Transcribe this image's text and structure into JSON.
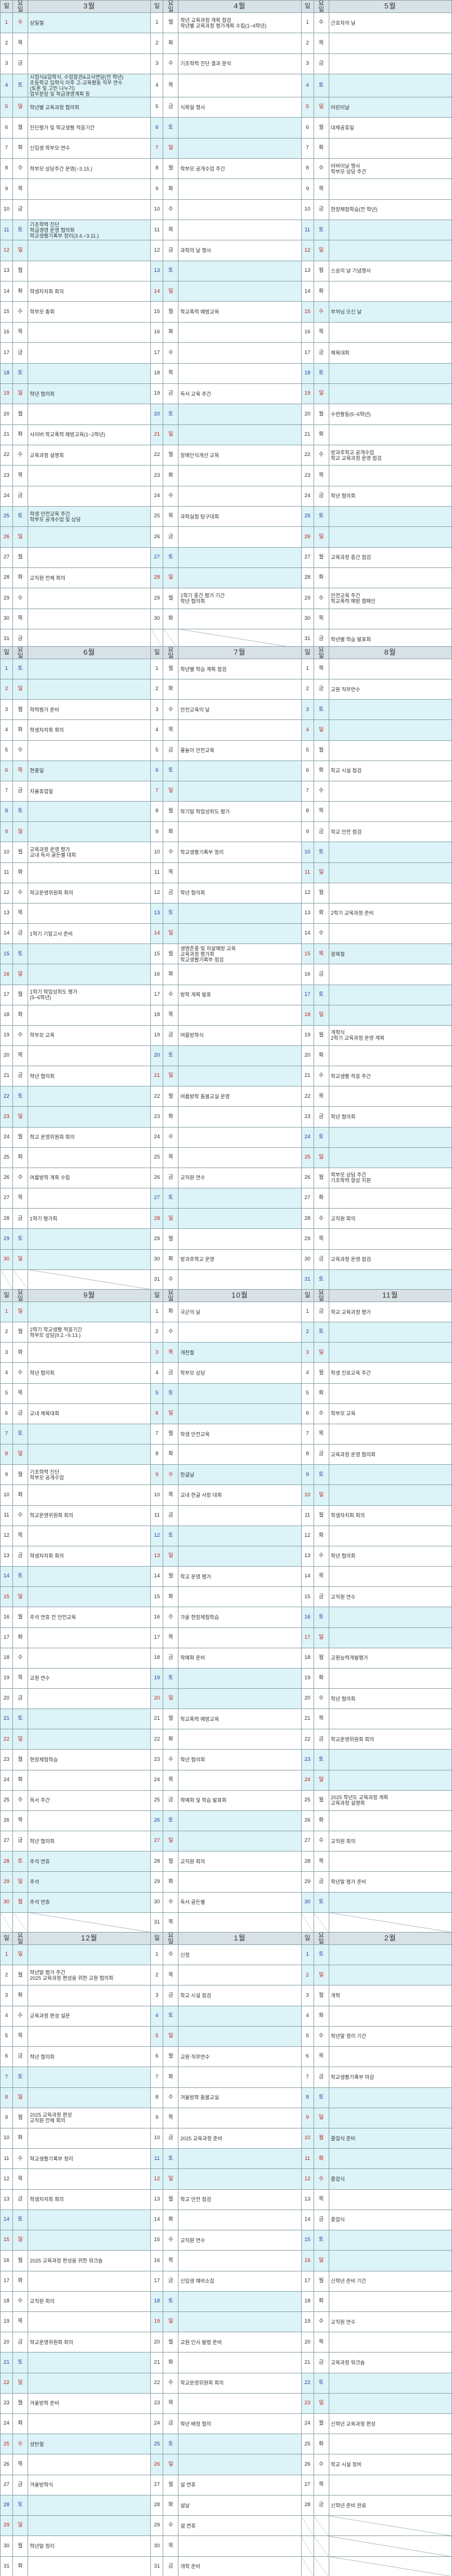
{
  "header_labels": {
    "day": "일",
    "weekday": "요일"
  },
  "holiday_dates": [
    "3-1",
    "5-5",
    "5-15",
    "6-6",
    "8-15",
    "9-28",
    "9-29",
    "9-30",
    "10-3",
    "10-9",
    "12-25",
    "2-9",
    "2-10",
    "2-11",
    "2-12"
  ],
  "colors": {
    "header": "#d8e2e6",
    "highlight": "#dcf4f8",
    "grid": "#8aa0a8",
    "sunday": "#c02020",
    "saturday": "#2040a0"
  },
  "blocks": [
    {
      "months": [
        {
          "title": "3월",
          "wk1": 3,
          "days": 31,
          "events": {
            "1": "삼일절",
            "4": "시업식&입학식, 수업참관&교사면담(전 학년)\n초등학교 입학식 이후 고-교육활동 직무 연수\n(토론 및 고민 나누기)\n업무분장 및 학급경영계획 등",
            "5": "학년별 교육과정 협의회",
            "6": "진단평가 및 학교생활 적응기간",
            "7": "신입생 학부모 연수",
            "8": "학부모 상담주간 운영(~3.15.)",
            "11": "기초학력 진단\n학급경영 운영 협의회\n학교생활기록부 정리(3.4.~3.11.)",
            "14": "학생자치회 회의",
            "15": "학부모 총회",
            "19": "학년 협의회",
            "21": "사이버 학교폭력 예방교육(1~2학년)",
            "22": "교육과정 설명회",
            "25": "학생 안전교육 주간\n학부모 공개수업 및 상담",
            "28": "교직원 전체 회의"
          }
        },
        {
          "title": "4월",
          "wk1": 1,
          "days": 30,
          "events": {
            "1": "학년 교육과정 계획 점검\n학년별 교육과정 평가계획 수립(1~4학년)",
            "3": "기초학력 진단 결과 분석",
            "5": "식목일 행사",
            "8": "학부모 공개수업 주간",
            "12": "과학의 날 행사",
            "15": "학교폭력 예방교육",
            "19": "독서 교육 주간",
            "22": "장애인식개선 교육",
            "25": "과학실험 탐구대회",
            "29": "1학기 중간 평가 기간\n학년 협의회"
          }
        },
        {
          "title": "5월",
          "wk1": 3,
          "days": 31,
          "events": {
            "1": "근로자의 날",
            "5": "어린이날",
            "6": "대체공휴일",
            "8": "어버이날 행사\n학부모 상담 주간",
            "10": "현장체험학습(전 학년)",
            "13": "스승의 날 기념행사",
            "15": "부처님 오신 날",
            "17": "체육대회",
            "20": "수련활동(5~6학년)",
            "22": "방과후학교 공개수업\n학교 교육과정 운영 점검",
            "24": "학년 협의회",
            "27": "교육과정 중간 점검",
            "29": "안전교육 주간\n학교폭력 예방 캠페인",
            "31": "학년별 학습 발표회"
          }
        }
      ]
    },
    {
      "months": [
        {
          "title": "6월",
          "wk1": 6,
          "days": 30,
          "events": {
            "3": "학력평가 준비",
            "4": "학생자치회 회의",
            "6": "현충일",
            "7": "자율휴업일",
            "10": "교육과정 운영 평가\n교내 독서 골든벨 대회",
            "12": "학교운영위원회 회의",
            "14": "1학기 기말고사 준비",
            "17": "1학기 학업성취도 평가\n(5~6학년)",
            "19": "학부모 교육",
            "21": "학년 협의회",
            "24": "학교 운영위원회 회의",
            "26": "여름방학 계획 수립",
            "28": "1학기 평가회"
          }
        },
        {
          "title": "7월",
          "wk1": 1,
          "days": 31,
          "events": {
            "1": "학년별 학습 계획 점검",
            "3": "안전교육의 날",
            "5": "물놀이 안전교육",
            "8": "학기말 학업성취도 평가",
            "10": "학교생활기록부 정리",
            "12": "학년 협의회",
            "15": "생명존중 및 자살예방 교육\n교육과정 평가회\n학교생활기록부 점검",
            "17": "방학 계획 발표",
            "19": "여름방학식",
            "22": "여름방학 돌봄교실 운영",
            "26": "교직원 연수",
            "30": "방과후학교 운영"
          }
        },
        {
          "title": "8월",
          "wk1": 4,
          "days": 31,
          "events": {
            "2": "교원 직무연수",
            "6": "학교 시설 점검",
            "9": "학교 안전 점검",
            "13": "2학기 교육과정 준비",
            "15": "광복절",
            "19": "개학식\n2학기 교육과정 운영 계획",
            "21": "학교생활 적응 주간",
            "23": "학년 협의회",
            "26": "학부모 상담 주간\n기초학력 향상 지원",
            "28": "교직원 회의",
            "30": "교육과정 운영 점검"
          }
        }
      ]
    },
    {
      "months": [
        {
          "title": "9월",
          "wk1": 7,
          "days": 30,
          "events": {
            "2": "2학기 학교생활 적응기간\n학부모 상담(9.2.~9.13.)",
            "4": "학년 협의회",
            "6": "교내 체육대회",
            "9": "기초학력 진단\n학부모 공개수업",
            "11": "학교운영위원회 회의",
            "13": "학생자치회 회의",
            "16": "추석 연휴 전 안전교육",
            "19": "교원 연수",
            "23": "현장체험학습",
            "25": "독서 주간",
            "27": "학년 협의회",
            "28": "추석 연휴",
            "29": "추석",
            "30": "추석 연휴"
          }
        },
        {
          "title": "10월",
          "wk1": 2,
          "days": 31,
          "events": {
            "1": "국군의 날",
            "3": "개천절",
            "4": "학부모 상담",
            "7": "학생 안전교육",
            "9": "한글날",
            "10": "교내 한글 사랑 대회",
            "14": "학교 운영 평가",
            "16": "가을 현장체험학습",
            "18": "학예회 준비",
            "21": "학교폭력 예방교육",
            "23": "학년 협의회",
            "25": "학예회 및 학습 발표회",
            "28": "교직원 회의",
            "30": "독서 골든벨"
          }
        },
        {
          "title": "11월",
          "wk1": 5,
          "days": 30,
          "events": {
            "1": "학교 교육과정 평가",
            "4": "학생 진로교육 주간",
            "6": "학부모 교육",
            "8": "교육과정 운영 협의회",
            "11": "학생자치회 회의",
            "13": "학년 협의회",
            "15": "교직원 연수",
            "18": "교원능력개발평가",
            "20": "학년 협의회",
            "22": "학교운영위원회 회의",
            "25": "2025 학년도 교육과정 계획\n교육과정 설명회",
            "27": "교직원 회의",
            "29": "학년말 평가 준비"
          }
        }
      ]
    },
    {
      "months": [
        {
          "title": "12월",
          "wk1": 7,
          "days": 31,
          "events": {
            "2": "학년말 평가 주간\n2025 교육과정 편성을 위한 교원 협의회",
            "4": "교육과정 편성 설문",
            "6": "학년 협의회",
            "9": "2025 교육과정 편성\n교직원 전체 회의",
            "11": "학교생활기록부 정리",
            "13": "학생자치회 회의",
            "16": "2025 교육과정 편성을 위한 워크숍",
            "18": "교직원 회의",
            "20": "학교운영위원회 회의",
            "23": "겨울방학 준비",
            "25": "성탄절",
            "27": "겨울방학식",
            "30": "학년말 정리"
          }
        },
        {
          "title": "1월",
          "wk1": 3,
          "days": 31,
          "events": {
            "1": "신정",
            "3": "학교 시설 점검",
            "6": "교원 직무연수",
            "8": "겨울방학 돌봄교실",
            "10": "2025 교육과정 준비",
            "13": "학교 안전 점검",
            "15": "교직원 연수",
            "17": "신입생 예비소집",
            "20": "교원 인사 발령 준비",
            "22": "학교운영위원회 회의",
            "24": "학년 배정 협의",
            "27": "설 연휴",
            "28": "설날",
            "29": "설 연휴",
            "31": "개학 준비"
          }
        },
        {
          "title": "2월",
          "wk1": 6,
          "days": 28,
          "events": {
            "3": "개학",
            "5": "학년말 정리 기간",
            "7": "학교생활기록부 마감",
            "10": "졸업식 준비",
            "12": "졸업식",
            "14": "종업식",
            "17": "신학년 준비 기간",
            "19": "교직원 연수",
            "21": "교육과정 워크숍",
            "24": "신학년 교육과정 편성",
            "26": "학교 시설 정비",
            "28": "신학년 준비 완료"
          }
        }
      ]
    }
  ]
}
